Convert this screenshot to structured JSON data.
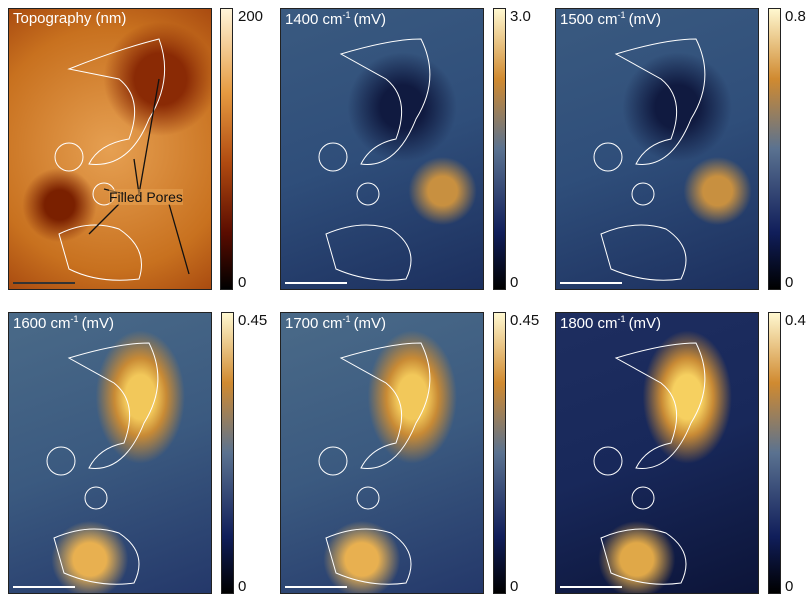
{
  "annotation": "Filled Pores",
  "panels": [
    {
      "label": "Topography (nm)",
      "max": "200",
      "min": "0"
    },
    {
      "label": "1400 cm",
      "sup": "-1",
      "unit": "(mV)",
      "max": "3.0",
      "min": "0"
    },
    {
      "label": "1500 cm",
      "sup": "-1",
      "unit": "(mV)",
      "max": "0.8",
      "min": "0"
    },
    {
      "label": "1600 cm",
      "sup": "-1",
      "unit": "(mV)",
      "max": "0.45",
      "min": "0"
    },
    {
      "label": "1700 cm",
      "sup": "-1",
      "unit": "(mV)",
      "max": "0.45",
      "min": "0"
    },
    {
      "label": "1800 cm",
      "sup": "-1",
      "unit": "(mV)",
      "max": "0.4",
      "min": "0"
    }
  ]
}
